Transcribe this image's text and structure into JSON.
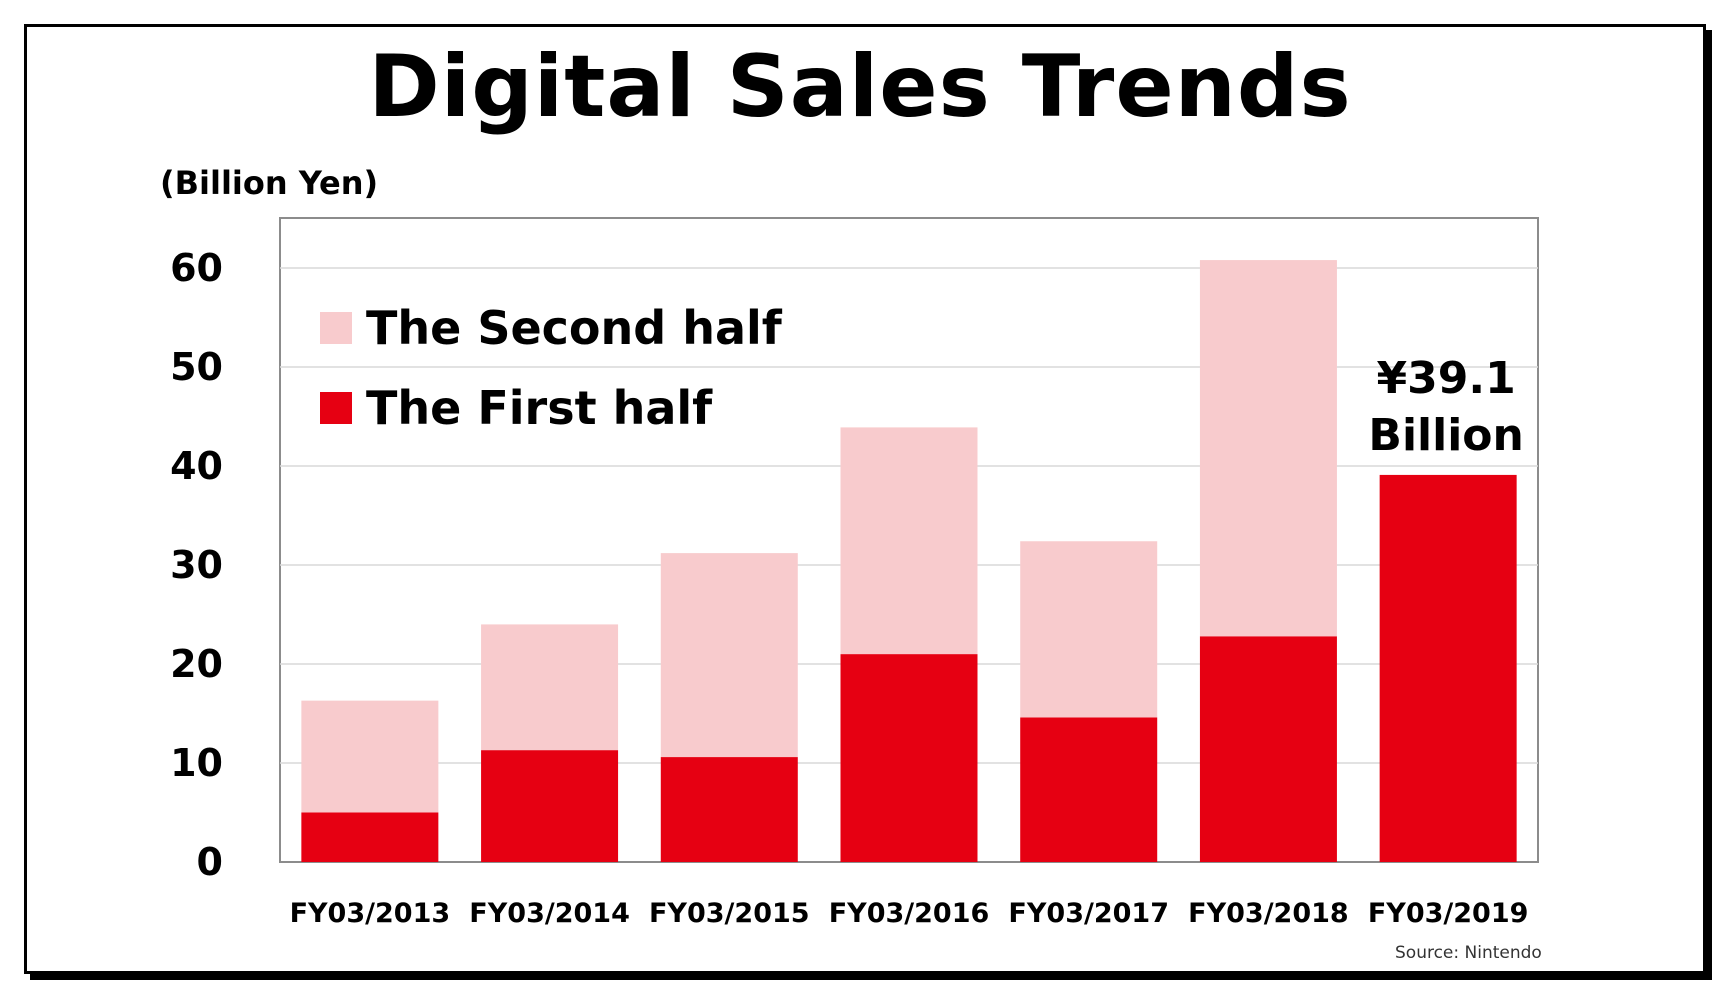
{
  "chart_data": {
    "type": "bar",
    "stacked": true,
    "title": "Digital Sales Trends",
    "ylabel": "(Billion Yen)",
    "ylim": [
      0,
      65
    ],
    "yticks": [
      0,
      10,
      20,
      30,
      40,
      50,
      60
    ],
    "grid": true,
    "legend_position": "top-left",
    "categories": [
      "FY03/2013",
      "FY03/2014",
      "FY03/2015",
      "FY03/2016",
      "FY03/2017",
      "FY03/2018",
      "FY03/2019"
    ],
    "series": [
      {
        "name": "The First half",
        "color": "#e60012",
        "values": [
          5.0,
          11.3,
          10.6,
          21.0,
          14.6,
          22.8,
          39.1
        ]
      },
      {
        "name": "The Second half",
        "color": "#f8cbcd",
        "values": [
          11.3,
          12.7,
          20.6,
          22.9,
          17.8,
          38.0,
          null
        ]
      }
    ],
    "legend_order": [
      "The Second half",
      "The First half"
    ],
    "annotation": {
      "lines": [
        "¥39.1",
        "Billion"
      ]
    },
    "source": "Source: Nintendo"
  }
}
